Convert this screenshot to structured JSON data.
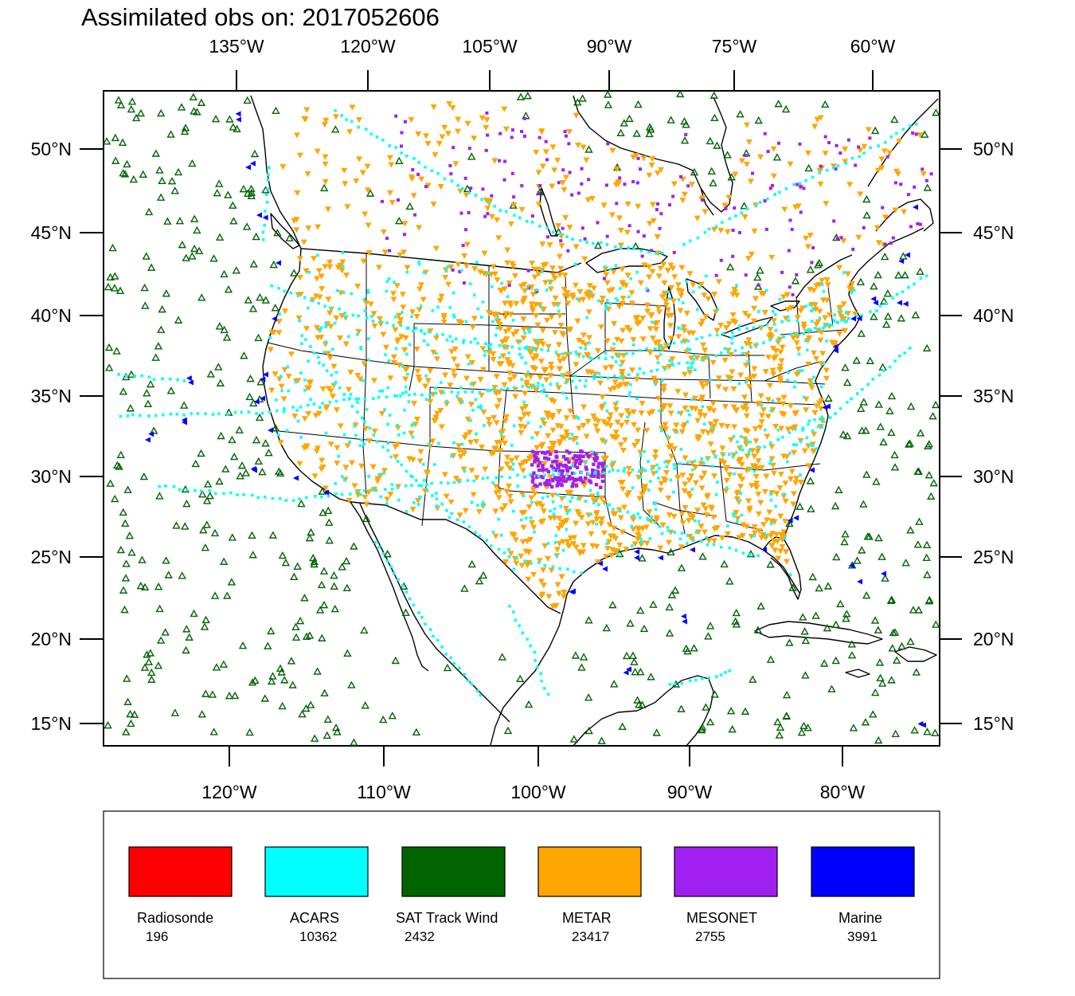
{
  "title": "Assimilated obs on: 2017052606",
  "top_axis_labels": [
    "135°W",
    "120°W",
    "105°W",
    "90°W",
    "75°W",
    "60°W"
  ],
  "bottom_axis_labels": [
    "120°W",
    "110°W",
    "100°W",
    "90°W",
    "80°W"
  ],
  "lat_labels": [
    "50°N",
    "45°N",
    "40°N",
    "35°N",
    "30°N",
    "25°N",
    "20°N",
    "15°N"
  ],
  "legend": [
    {
      "name": "Radiosonde",
      "count": "196",
      "color": "#ff0000"
    },
    {
      "name": "ACARS",
      "count": "10362",
      "color": "#00ffff"
    },
    {
      "name": "SAT Track Wind",
      "count": "2432",
      "color": "#006400"
    },
    {
      "name": "METAR",
      "count": "23417",
      "color": "#ffa500"
    },
    {
      "name": "MESONET",
      "count": "2755",
      "color": "#a020f0"
    },
    {
      "name": "Marine",
      "count": "3991",
      "color": "#0000ff"
    }
  ],
  "colors": {
    "acars": "#00ffff",
    "sat_track_wind": "#006400",
    "metar": "#ffa500",
    "mesonet": "#a020f0",
    "marine": "#0000ff"
  }
}
